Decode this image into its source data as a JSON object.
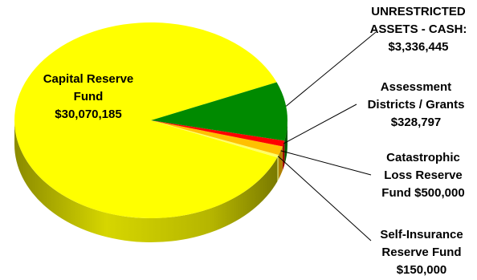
{
  "chart_data": {
    "type": "pie",
    "style": "3d",
    "legend": "none",
    "slices": [
      {
        "name": "Capital Reserve Fund",
        "value": 30070185,
        "label_lines": [
          "Capital Reserve",
          "Fund",
          "$30,070,185"
        ],
        "color": "#ffff00",
        "side_color": "#c8c800"
      },
      {
        "name": "UNRESTRICTED ASSETS - CASH",
        "value": 3336445,
        "label_lines": [
          "UNRESTRICTED",
          "ASSETS - CASH:",
          "$3,336,445"
        ],
        "color": "#008a00",
        "side_color": "#005a00"
      },
      {
        "name": "Assessment Districts / Grants",
        "value": 328797,
        "label_lines": [
          "Assessment",
          "Districts / Grants",
          "$328,797"
        ],
        "color": "#ff0000",
        "side_color": "#a00000"
      },
      {
        "name": "Catastrophic Loss Reserve Fund",
        "value": 500000,
        "label_lines": [
          "Catastrophic",
          "Loss Reserve",
          "Fund $500,000"
        ],
        "color": "#ffc000",
        "side_color": "#b08000"
      },
      {
        "name": "Self-Insurance Reserve Fund",
        "value": 150000,
        "label_lines": [
          "Self-Insurance",
          "Reserve Fund",
          "$150,000"
        ],
        "color": "#ffff66",
        "side_color": "#c8c850"
      }
    ]
  }
}
